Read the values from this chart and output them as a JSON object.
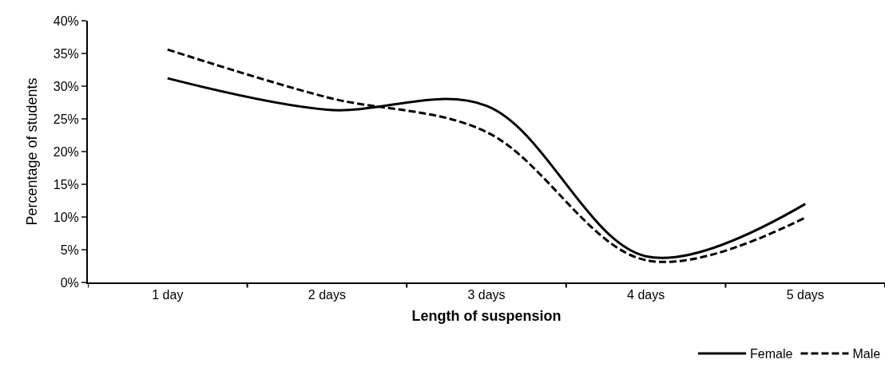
{
  "chart_data": {
    "type": "line",
    "xlabel": "Length of suspension",
    "ylabel": "Percentage of students",
    "categories": [
      "1 day",
      "2 days",
      "3 days",
      "4 days",
      "5 days"
    ],
    "series": [
      {
        "name": "Female",
        "color": "#000000",
        "line_style": "solid",
        "values": [
          31.2,
          26.4,
          27.0,
          4.0,
          12.0
        ]
      },
      {
        "name": "Male",
        "color": "#000000",
        "line_style": "dashed",
        "values": [
          35.6,
          28.3,
          23.0,
          3.4,
          9.9
        ]
      }
    ],
    "ylim": [
      0,
      40
    ],
    "yticks": [
      {
        "value": 0,
        "label": "0%"
      },
      {
        "value": 5,
        "label": "5%"
      },
      {
        "value": 10,
        "label": "10%"
      },
      {
        "value": 15,
        "label": "15%"
      },
      {
        "value": 20,
        "label": "20%"
      },
      {
        "value": 25,
        "label": "25%"
      },
      {
        "value": 30,
        "label": "30%"
      },
      {
        "value": 35,
        "label": "35%"
      },
      {
        "value": 40,
        "label": "40%"
      }
    ],
    "legend": "bottom right",
    "marker": "none"
  }
}
